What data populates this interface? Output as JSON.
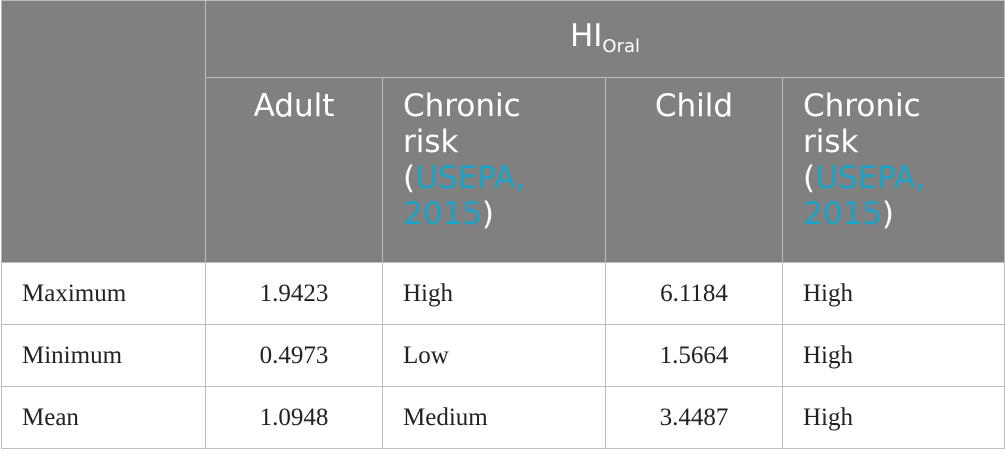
{
  "table": {
    "group_header": {
      "main": "HI",
      "sub": "Oral"
    },
    "columns": [
      {
        "label": "Adult"
      },
      {
        "label_lines": [
          "Chronic",
          "risk"
        ],
        "open": "(",
        "cite": "USEPA,",
        "cite2": "2015",
        "close": ")"
      },
      {
        "label": "Child"
      },
      {
        "label_lines": [
          "Chronic",
          "risk"
        ],
        "open": "(",
        "cite": "USEPA,",
        "cite2": "2015",
        "close": ")"
      }
    ],
    "rows": [
      {
        "label": "Maximum",
        "adult": "1.9423",
        "adult_risk": "High",
        "child": "6.1184",
        "child_risk": "High"
      },
      {
        "label": "Minimum",
        "adult": "0.4973",
        "adult_risk": "Low",
        "child": "1.5664",
        "child_risk": "High"
      },
      {
        "label": "Mean",
        "adult": "1.0948",
        "adult_risk": "Medium",
        "child": "3.4487",
        "child_risk": "High"
      }
    ]
  },
  "colors": {
    "header_bg": "#808080",
    "citation": "#1aa3c7",
    "border": "#bdbdbd"
  }
}
